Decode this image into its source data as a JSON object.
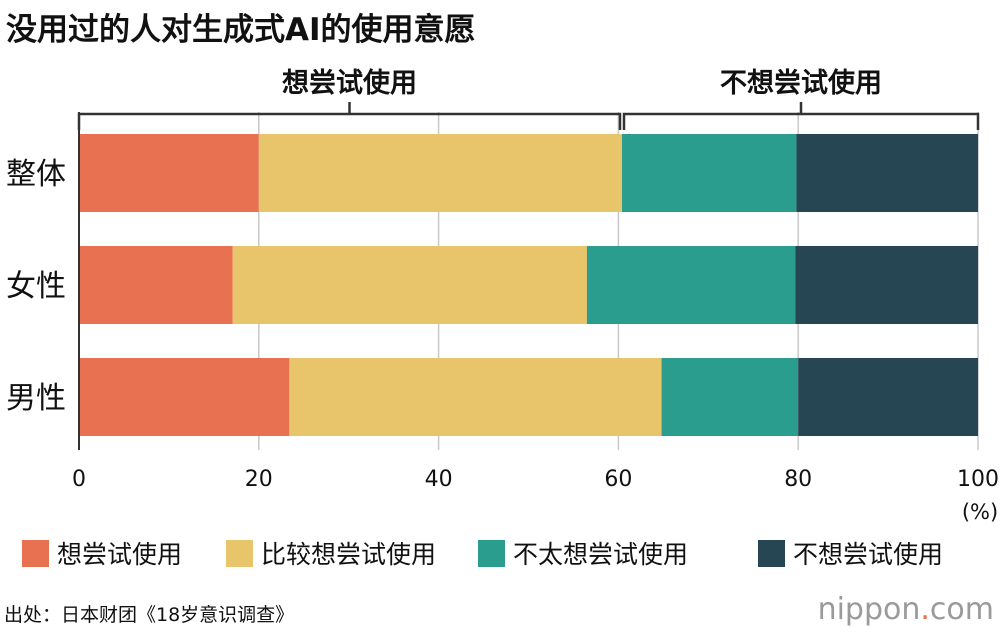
{
  "title": "没用过的人对生成式AI的使用意愿",
  "source": "出处：日本财团《18岁意识调查》",
  "logo": {
    "name": "nippon",
    "dot": ".",
    "tld": "com"
  },
  "chart_data": {
    "type": "bar",
    "orientation": "horizontal",
    "stacked": true,
    "categories": [
      "整体",
      "女性",
      "男性"
    ],
    "series": [
      {
        "name": "想尝试使用",
        "color": "#e77150",
        "values": [
          20.0,
          17.1,
          23.4
        ]
      },
      {
        "name": "比较想尝试使用",
        "color": "#e8c46a",
        "values": [
          40.4,
          39.4,
          41.4
        ]
      },
      {
        "name": "不太想尝试使用",
        "color": "#2a9d8f",
        "values": [
          19.4,
          23.2,
          15.2
        ]
      },
      {
        "name": "不想尝试使用",
        "color": "#264653",
        "values": [
          20.2,
          20.3,
          20.0
        ]
      }
    ],
    "xlim": [
      0,
      100
    ],
    "xticks": [
      0,
      20,
      40,
      60,
      80,
      100
    ],
    "xunit": "(%)",
    "grid": true,
    "legend": "bottom",
    "groups": [
      {
        "label": "想尝试使用",
        "from_series": 0,
        "to_series": 1
      },
      {
        "label": "不想尝试使用",
        "from_series": 2,
        "to_series": 3
      }
    ]
  }
}
